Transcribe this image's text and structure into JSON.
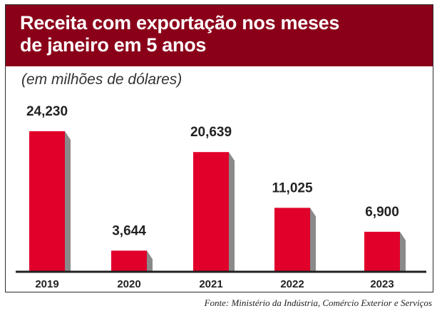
{
  "header": {
    "title_line1": "Receita com exportação nos meses",
    "title_line2": "de janeiro em 5 anos"
  },
  "unit_note": "(em milhões de dólares)",
  "source": "Fonte: Ministério da Indústria, Comércio Exterior e Serviços",
  "colors": {
    "header_bg": "#8b0019",
    "bar": "#e0002a",
    "bar_shadow": "#8a8a8a",
    "baseline": "#222222"
  },
  "chart_data": {
    "type": "bar",
    "categories": [
      "2019",
      "2020",
      "2021",
      "2022",
      "2023"
    ],
    "values": [
      24.23,
      3.644,
      20.639,
      11.025,
      6.9
    ],
    "data_labels": [
      "24,230",
      "3,644",
      "20,639",
      "11,025",
      "6,900"
    ],
    "title": "Receita com exportação nos meses de janeiro em 5 anos",
    "ylabel": "(em milhões de dólares)",
    "xlabel": "",
    "ylim": [
      0,
      24.23
    ],
    "grid": false,
    "legend": "none"
  }
}
